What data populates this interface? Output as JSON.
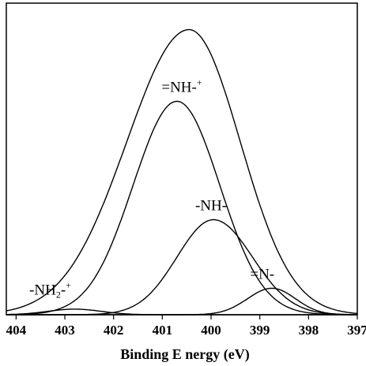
{
  "chart_data": {
    "type": "line",
    "title": "",
    "xlabel": "Binding E nergy (eV)",
    "ylabel": "",
    "xlim": [
      404.2,
      397
    ],
    "x_reversed": true,
    "grid": false,
    "legend": "none",
    "x_ticks": [
      "404",
      "403",
      "402",
      "401",
      "400",
      "399",
      "398",
      "397"
    ],
    "x_tick_values": [
      404,
      403,
      402,
      401,
      400,
      399,
      398,
      397
    ],
    "ylim": [
      0,
      1.0
    ],
    "series": [
      {
        "name": "",
        "role": "envelope",
        "center": 400.45,
        "height": 0.915,
        "sigma_low_be": 1.28,
        "sigma_high_be": 1.05
      },
      {
        "name": "=NH-+",
        "center": 400.7,
        "height": 0.685,
        "sigma_low_be": 0.9,
        "sigma_high_be": 0.88
      },
      {
        "name": "-NH-",
        "center": 399.95,
        "height": 0.305,
        "sigma_low_be": 0.75,
        "sigma_high_be": 0.8
      },
      {
        "name": "=N-",
        "center": 398.75,
        "height": 0.085,
        "sigma_low_be": 0.5,
        "sigma_high_be": 0.48
      },
      {
        "name": "-NH2-+",
        "center": 402.8,
        "height": 0.018,
        "sigma_low_be": 0.55,
        "sigma_high_be": 0.55
      }
    ],
    "annotations": [
      {
        "base": "=NH",
        "suffix": "-",
        "sup": "+",
        "x": 400.6,
        "y": 0.715
      },
      {
        "base": "-NH-",
        "suffix": "",
        "sup": "",
        "x": 400.0,
        "y": 0.335
      },
      {
        "base": "=N-",
        "suffix": "",
        "sup": "",
        "x": 398.95,
        "y": 0.115
      },
      {
        "base": "-NH",
        "sub": "2",
        "suffix": "-",
        "sup": "+",
        "x": 403.3,
        "y": 0.065
      }
    ]
  }
}
